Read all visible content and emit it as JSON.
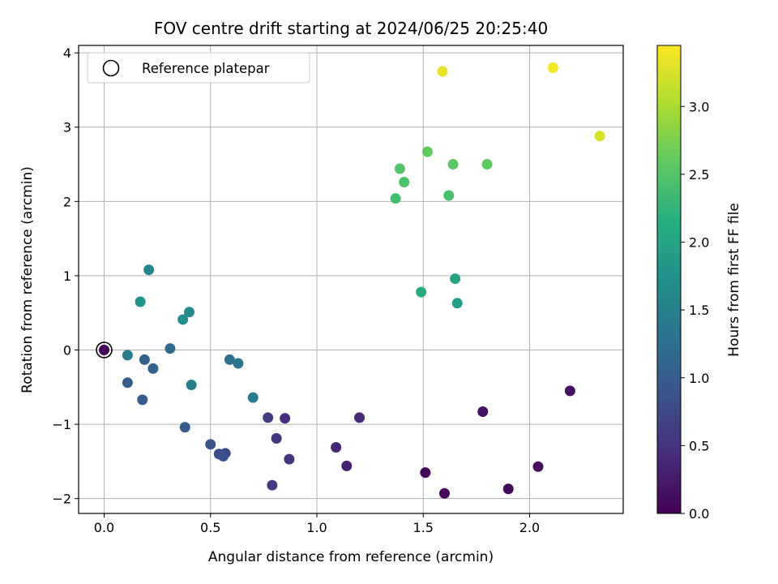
{
  "chart_data": {
    "type": "scatter",
    "title": "FOV centre drift starting at 2024/06/25 20:25:40",
    "xlabel": "Angular distance from reference (arcmin)",
    "ylabel": "Rotation from reference (arcmin)",
    "xlim": [
      -0.12,
      2.44
    ],
    "ylim": [
      -2.2,
      4.1
    ],
    "xticks": [
      0.0,
      0.5,
      1.0,
      1.5,
      2.0
    ],
    "xtick_labels": [
      "0.0",
      "0.5",
      "1.0",
      "1.5",
      "2.0"
    ],
    "yticks": [
      -2,
      -1,
      0,
      1,
      2,
      3,
      4
    ],
    "ytick_labels": [
      "−2",
      "−1",
      "0",
      "1",
      "2",
      "3",
      "4"
    ],
    "grid": true,
    "legend": {
      "position": "upper-left",
      "entries": [
        "Reference platepar"
      ]
    },
    "reference_point": {
      "x": 0.0,
      "y": 0.0
    },
    "colorbar": {
      "label": "Hours from first FF file",
      "colormap": "viridis",
      "range": [
        0.0,
        3.45
      ],
      "ticks": [
        0.0,
        0.5,
        1.0,
        1.5,
        2.0,
        2.5,
        3.0
      ],
      "tick_labels": [
        "0.0",
        "0.5",
        "1.0",
        "1.5",
        "2.0",
        "2.5",
        "3.0"
      ]
    },
    "points": [
      {
        "x": 0.0,
        "y": 0.0,
        "hours": 0.02
      },
      {
        "x": 1.51,
        "y": -1.65,
        "hours": 0.05
      },
      {
        "x": 1.6,
        "y": -1.93,
        "hours": 0.08
      },
      {
        "x": 1.9,
        "y": -1.87,
        "hours": 0.1
      },
      {
        "x": 2.04,
        "y": -1.57,
        "hours": 0.12
      },
      {
        "x": 2.19,
        "y": -0.55,
        "hours": 0.15
      },
      {
        "x": 1.78,
        "y": -0.83,
        "hours": 0.18
      },
      {
        "x": 1.14,
        "y": -1.56,
        "hours": 0.3
      },
      {
        "x": 1.09,
        "y": -1.31,
        "hours": 0.35
      },
      {
        "x": 1.2,
        "y": -0.91,
        "hours": 0.4
      },
      {
        "x": 0.85,
        "y": -0.92,
        "hours": 0.45
      },
      {
        "x": 0.87,
        "y": -1.47,
        "hours": 0.5
      },
      {
        "x": 0.81,
        "y": -1.19,
        "hours": 0.55
      },
      {
        "x": 0.79,
        "y": -1.82,
        "hours": 0.6
      },
      {
        "x": 0.77,
        "y": -0.91,
        "hours": 0.62
      },
      {
        "x": 0.57,
        "y": -1.39,
        "hours": 0.75
      },
      {
        "x": 0.54,
        "y": -1.4,
        "hours": 0.8
      },
      {
        "x": 0.56,
        "y": -1.43,
        "hours": 0.85
      },
      {
        "x": 0.5,
        "y": -1.27,
        "hours": 0.92
      },
      {
        "x": 0.38,
        "y": -1.04,
        "hours": 1.0
      },
      {
        "x": 0.11,
        "y": -0.44,
        "hours": 1.0
      },
      {
        "x": 0.18,
        "y": -0.67,
        "hours": 1.02
      },
      {
        "x": 0.19,
        "y": -0.13,
        "hours": 1.05
      },
      {
        "x": 0.23,
        "y": -0.25,
        "hours": 1.08
      },
      {
        "x": 0.59,
        "y": -0.13,
        "hours": 1.3
      },
      {
        "x": 0.63,
        "y": -0.18,
        "hours": 1.35
      },
      {
        "x": 0.7,
        "y": -0.64,
        "hours": 1.4
      },
      {
        "x": 0.41,
        "y": -0.47,
        "hours": 1.45
      },
      {
        "x": 0.11,
        "y": -0.07,
        "hours": 1.45
      },
      {
        "x": 0.31,
        "y": 0.02,
        "hours": 1.2
      },
      {
        "x": 0.21,
        "y": 1.08,
        "hours": 1.55
      },
      {
        "x": 0.4,
        "y": 0.51,
        "hours": 1.62
      },
      {
        "x": 0.37,
        "y": 0.41,
        "hours": 1.7
      },
      {
        "x": 0.17,
        "y": 0.65,
        "hours": 1.8
      },
      {
        "x": 1.66,
        "y": 0.63,
        "hours": 1.92
      },
      {
        "x": 1.65,
        "y": 0.96,
        "hours": 2.0
      },
      {
        "x": 1.49,
        "y": 0.78,
        "hours": 2.1
      },
      {
        "x": 1.37,
        "y": 2.04,
        "hours": 2.38
      },
      {
        "x": 1.62,
        "y": 2.08,
        "hours": 2.42
      },
      {
        "x": 1.41,
        "y": 2.26,
        "hours": 2.46
      },
      {
        "x": 1.39,
        "y": 2.44,
        "hours": 2.5
      },
      {
        "x": 1.64,
        "y": 2.5,
        "hours": 2.55
      },
      {
        "x": 1.8,
        "y": 2.5,
        "hours": 2.58
      },
      {
        "x": 1.52,
        "y": 2.67,
        "hours": 2.6
      },
      {
        "x": 2.33,
        "y": 2.88,
        "hours": 3.25
      },
      {
        "x": 1.59,
        "y": 3.75,
        "hours": 3.35
      },
      {
        "x": 2.11,
        "y": 3.8,
        "hours": 3.4
      }
    ]
  }
}
